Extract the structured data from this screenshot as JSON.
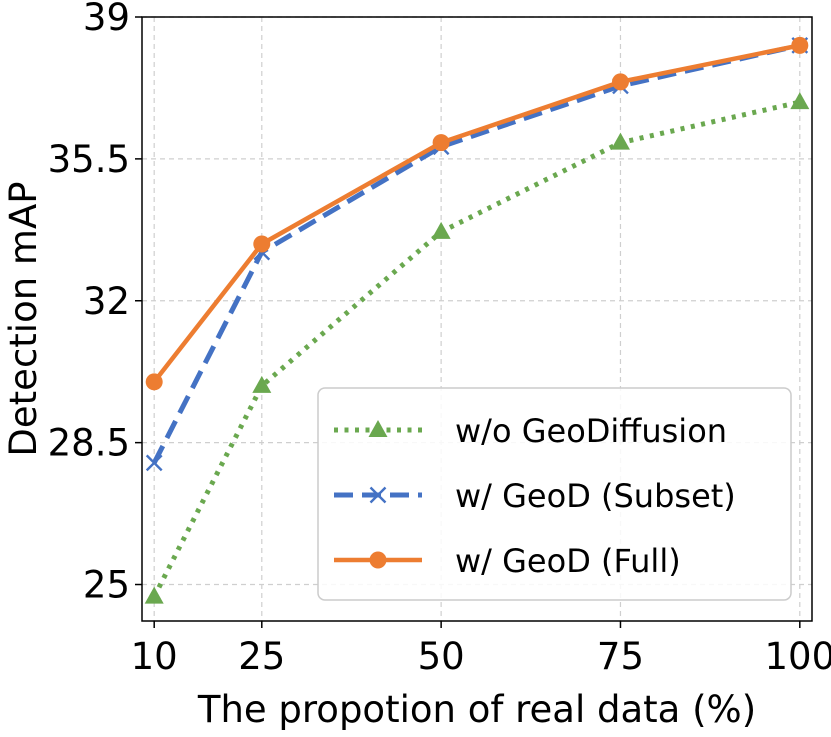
{
  "chart_data": {
    "type": "line",
    "title": "",
    "xlabel": "The propotion of real data (%)",
    "ylabel": "Detection mAP",
    "x": [
      10,
      25,
      50,
      75,
      100
    ],
    "x_tick_labels": [
      "10",
      "25",
      "50",
      "75",
      "100"
    ],
    "xlim": [
      8.3,
      101.7
    ],
    "ylim": [
      24.1,
      39.0
    ],
    "y_ticks": [
      25,
      28.5,
      32,
      35.5,
      39
    ],
    "y_tick_labels": [
      "25",
      "28.5",
      "32",
      "35.5",
      "39"
    ],
    "grid": true,
    "legend_position": "bottom-right",
    "series": [
      {
        "name": "w/o GeoDiffusion",
        "values": [
          24.7,
          29.9,
          33.7,
          35.9,
          36.9
        ],
        "color": "#6aa84f",
        "line_style": "dotted",
        "marker": "triangle"
      },
      {
        "name": "w/ GeoD (Subset)",
        "values": [
          28.0,
          33.2,
          35.8,
          37.3,
          38.3
        ],
        "color": "#4472c4",
        "line_style": "dashed",
        "marker": "x"
      },
      {
        "name": "w/ GeoD (Full)",
        "values": [
          30.0,
          33.4,
          35.9,
          37.4,
          38.3
        ],
        "color": "#ed7d31",
        "line_style": "solid",
        "marker": "circle"
      }
    ]
  }
}
